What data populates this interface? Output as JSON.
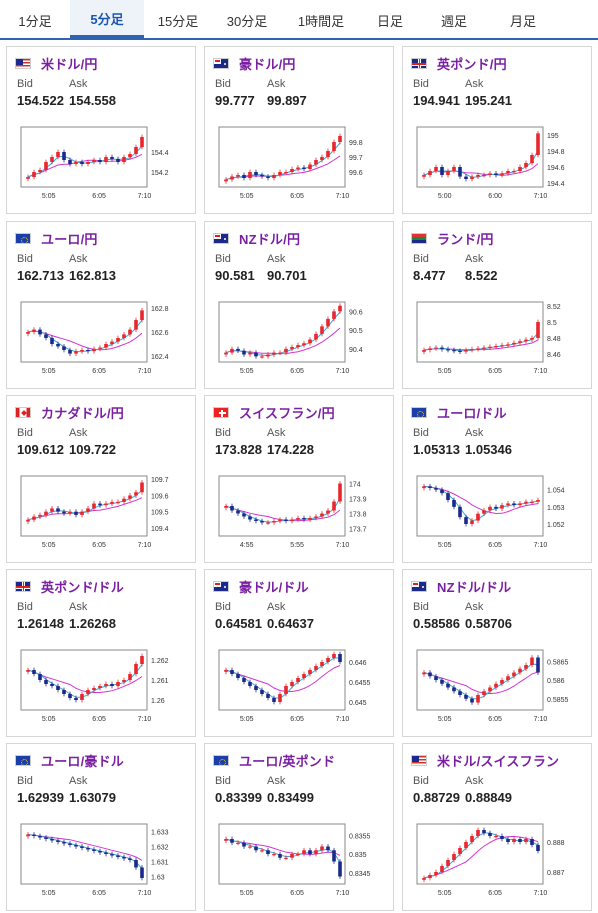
{
  "tabs": [
    {
      "label": "1分足",
      "active": false
    },
    {
      "label": "5分足",
      "active": true
    },
    {
      "label": "15分足",
      "active": false
    },
    {
      "label": "30分足",
      "active": false
    },
    {
      "label": "1時間足",
      "active": false
    },
    {
      "label": "日足",
      "active": false
    },
    {
      "label": "週足",
      "active": false
    },
    {
      "label": "月足",
      "active": false
    }
  ],
  "labels": {
    "bid": "Bid",
    "ask": "Ask"
  },
  "colors": {
    "up": "#e8262b",
    "down": "#1b2a8a",
    "ma_short": "#3fa2d8",
    "ma_long": "#d236d2",
    "pair_title": "#7b1fa2",
    "tab_accent": "#2f64b4"
  },
  "cards": [
    {
      "pair": "米ドル/円",
      "flag": "us-flag",
      "bid": "154.522",
      "ask": "154.558",
      "chart_data": {
        "type": "candlestick",
        "x_ticks": [
          "5:05",
          "6:05",
          "7:10"
        ],
        "y_ticks": [
          "154.4",
          "154.2"
        ],
        "ylim": [
          154.05,
          154.65
        ],
        "close": [
          154.15,
          154.2,
          154.22,
          154.3,
          154.35,
          154.4,
          154.32,
          154.28,
          154.3,
          154.28,
          154.3,
          154.32,
          154.3,
          154.35,
          154.33,
          154.3,
          154.35,
          154.38,
          154.45,
          154.55
        ]
      }
    },
    {
      "pair": "豪ドル/円",
      "flag": "au-flag",
      "bid": "99.777",
      "ask": "99.897",
      "chart_data": {
        "type": "candlestick",
        "x_ticks": [
          "5:05",
          "6:05",
          "7:10"
        ],
        "y_ticks": [
          "99.8",
          "99.7",
          "99.6"
        ],
        "ylim": [
          99.5,
          99.9
        ],
        "close": [
          99.55,
          99.57,
          99.58,
          99.56,
          99.6,
          99.58,
          99.57,
          99.56,
          99.58,
          99.6,
          99.6,
          99.62,
          99.63,
          99.62,
          99.65,
          99.68,
          99.7,
          99.74,
          99.8,
          99.84
        ]
      }
    },
    {
      "pair": "英ポンド/円",
      "flag": "gb-flag",
      "bid": "194.941",
      "ask": "195.241",
      "chart_data": {
        "type": "candlestick",
        "x_ticks": [
          "5:00",
          "6:00",
          "7:10"
        ],
        "y_ticks": [
          "195",
          "194.8",
          "194.6",
          "194.4"
        ],
        "ylim": [
          194.35,
          195.1
        ],
        "close": [
          194.5,
          194.55,
          194.6,
          194.5,
          194.55,
          194.6,
          194.48,
          194.45,
          194.48,
          194.5,
          194.5,
          194.52,
          194.5,
          194.52,
          194.55,
          194.55,
          194.6,
          194.65,
          194.75,
          195.02
        ]
      }
    },
    {
      "pair": "ユーロ/円",
      "flag": "eu-flag",
      "bid": "162.713",
      "ask": "162.813",
      "chart_data": {
        "type": "candlestick",
        "x_ticks": [
          "5:05",
          "6:05",
          "7:10"
        ],
        "y_ticks": [
          "162.8",
          "162.6",
          "162.4"
        ],
        "ylim": [
          162.35,
          162.85
        ],
        "close": [
          162.6,
          162.62,
          162.58,
          162.55,
          162.5,
          162.48,
          162.45,
          162.42,
          162.44,
          162.45,
          162.44,
          162.46,
          162.47,
          162.5,
          162.52,
          162.55,
          162.58,
          162.62,
          162.7,
          162.78
        ]
      }
    },
    {
      "pair": "NZドル/円",
      "flag": "nz-flag",
      "bid": "90.581",
      "ask": "90.701",
      "chart_data": {
        "type": "candlestick",
        "x_ticks": [
          "5:05",
          "6:05",
          "7:10"
        ],
        "y_ticks": [
          "90.6",
          "90.5",
          "90.4"
        ],
        "ylim": [
          90.33,
          90.65
        ],
        "close": [
          90.38,
          90.4,
          90.39,
          90.37,
          90.38,
          90.36,
          90.36,
          90.37,
          90.38,
          90.38,
          90.4,
          90.41,
          90.42,
          90.43,
          90.45,
          90.48,
          90.52,
          90.56,
          90.6,
          90.63
        ]
      }
    },
    {
      "pair": "ランド/円",
      "flag": "za-flag",
      "bid": "8.477",
      "ask": "8.522",
      "chart_data": {
        "type": "candlestick",
        "x_ticks": [
          "5:05",
          "6:05",
          "7:10"
        ],
        "y_ticks": [
          "8.52",
          "8.5",
          "8.48",
          "8.46"
        ],
        "ylim": [
          8.45,
          8.525
        ],
        "close": [
          8.465,
          8.467,
          8.468,
          8.466,
          8.465,
          8.464,
          8.463,
          8.465,
          8.466,
          8.467,
          8.468,
          8.469,
          8.47,
          8.471,
          8.472,
          8.474,
          8.476,
          8.478,
          8.48,
          8.5
        ]
      }
    },
    {
      "pair": "カナダドル/円",
      "flag": "ca-flag",
      "bid": "109.612",
      "ask": "109.722",
      "chart_data": {
        "type": "candlestick",
        "x_ticks": [
          "5:05",
          "6:05",
          "7:10"
        ],
        "y_ticks": [
          "109.7",
          "109.6",
          "109.5",
          "109.4"
        ],
        "ylim": [
          109.35,
          109.72
        ],
        "close": [
          109.45,
          109.47,
          109.48,
          109.5,
          109.52,
          109.5,
          109.49,
          109.5,
          109.48,
          109.5,
          109.52,
          109.55,
          109.54,
          109.55,
          109.56,
          109.56,
          109.58,
          109.6,
          109.62,
          109.68
        ]
      }
    },
    {
      "pair": "スイスフラン/円",
      "flag": "ch-flag",
      "bid": "173.828",
      "ask": "174.228",
      "chart_data": {
        "type": "candlestick",
        "x_ticks": [
          "4:55",
          "5:55",
          "7:10"
        ],
        "y_ticks": [
          "174",
          "173.9",
          "173.8",
          "173.7"
        ],
        "ylim": [
          173.65,
          174.05
        ],
        "close": [
          173.85,
          173.82,
          173.8,
          173.78,
          173.76,
          173.75,
          173.74,
          173.74,
          173.75,
          173.76,
          173.75,
          173.76,
          173.77,
          173.76,
          173.77,
          173.78,
          173.8,
          173.82,
          173.88,
          174.0
        ]
      }
    },
    {
      "pair": "ユーロ/ドル",
      "flag": "eu-flag",
      "bid": "1.05313",
      "ask": "1.05346",
      "chart_data": {
        "type": "candlestick",
        "x_ticks": [
          "5:05",
          "6:05",
          "7:10"
        ],
        "y_ticks": [
          "1.054",
          "1.053",
          "1.052"
        ],
        "ylim": [
          1.0513,
          1.0548
        ],
        "close": [
          1.0542,
          1.0541,
          1.054,
          1.0538,
          1.0534,
          1.053,
          1.0524,
          1.052,
          1.0522,
          1.0526,
          1.0528,
          1.053,
          1.0529,
          1.0531,
          1.0532,
          1.0531,
          1.0532,
          1.0533,
          1.0533,
          1.0534
        ]
      }
    },
    {
      "pair": "英ポンド/ドル",
      "flag": "gb-flag",
      "bid": "1.26148",
      "ask": "1.26268",
      "chart_data": {
        "type": "candlestick",
        "x_ticks": [
          "5:05",
          "6:05",
          "7:10"
        ],
        "y_ticks": [
          "1.262",
          "1.261",
          "1.26"
        ],
        "ylim": [
          1.2595,
          1.2625
        ],
        "close": [
          1.2615,
          1.2613,
          1.261,
          1.2608,
          1.2607,
          1.2605,
          1.2603,
          1.2601,
          1.26,
          1.2603,
          1.2605,
          1.2606,
          1.2607,
          1.2608,
          1.2607,
          1.2609,
          1.261,
          1.2613,
          1.2618,
          1.2622
        ]
      }
    },
    {
      "pair": "豪ドル/ドル",
      "flag": "au-flag",
      "bid": "0.64581",
      "ask": "0.64637",
      "chart_data": {
        "type": "candlestick",
        "x_ticks": [
          "5:05",
          "6:05",
          "7:10"
        ],
        "y_ticks": [
          "0.646",
          "0.6455",
          "0.645"
        ],
        "ylim": [
          0.6448,
          0.6463
        ],
        "close": [
          0.6458,
          0.6457,
          0.6456,
          0.6455,
          0.6454,
          0.6453,
          0.6452,
          0.6451,
          0.645,
          0.6452,
          0.6454,
          0.6455,
          0.6456,
          0.6457,
          0.6458,
          0.6459,
          0.646,
          0.6461,
          0.6462,
          0.646
        ]
      }
    },
    {
      "pair": "NZドル/ドル",
      "flag": "nz-flag",
      "bid": "0.58586",
      "ask": "0.58706",
      "chart_data": {
        "type": "candlestick",
        "x_ticks": [
          "5:05",
          "6:05",
          "7:10"
        ],
        "y_ticks": [
          "0.5865",
          "0.586",
          "0.5855"
        ],
        "ylim": [
          0.5852,
          0.5868
        ],
        "close": [
          0.5862,
          0.5861,
          0.586,
          0.5859,
          0.5858,
          0.5857,
          0.5856,
          0.5855,
          0.5854,
          0.5856,
          0.5857,
          0.5858,
          0.5859,
          0.586,
          0.5861,
          0.5862,
          0.5863,
          0.5864,
          0.5866,
          0.5862
        ]
      }
    },
    {
      "pair": "ユーロ/豪ドル",
      "flag": "eu-flag",
      "bid": "1.62939",
      "ask": "1.63079",
      "chart_data": {
        "type": "candlestick",
        "x_ticks": [
          "5:05",
          "6:05",
          "7:10"
        ],
        "y_ticks": [
          "1.633",
          "1.632",
          "1.631",
          "1.63"
        ],
        "ylim": [
          1.6295,
          1.6335
        ],
        "close": [
          1.6328,
          1.6327,
          1.6326,
          1.6325,
          1.6324,
          1.6323,
          1.6322,
          1.6321,
          1.632,
          1.6319,
          1.6318,
          1.6317,
          1.6316,
          1.6315,
          1.6314,
          1.6313,
          1.6312,
          1.6311,
          1.6306,
          1.6299
        ]
      }
    },
    {
      "pair": "ユーロ/英ポンド",
      "flag": "eu-flag",
      "bid": "0.83399",
      "ask": "0.83499",
      "chart_data": {
        "type": "candlestick",
        "x_ticks": [
          "5:05",
          "6:05",
          "7:10"
        ],
        "y_ticks": [
          "0.8355",
          "0.835",
          "0.8345"
        ],
        "ylim": [
          0.8342,
          0.8358
        ],
        "close": [
          0.8354,
          0.8353,
          0.8353,
          0.8352,
          0.8352,
          0.8351,
          0.8351,
          0.835,
          0.835,
          0.8349,
          0.8349,
          0.835,
          0.835,
          0.8351,
          0.835,
          0.8351,
          0.8352,
          0.8351,
          0.8348,
          0.8344
        ]
      }
    },
    {
      "pair": "米ドル/スイスフラン",
      "flag": "us-flag",
      "bid": "0.88729",
      "ask": "0.88849",
      "chart_data": {
        "type": "candlestick",
        "x_ticks": [
          "5:05",
          "6:05",
          "7:10"
        ],
        "y_ticks": [
          "0.888",
          "0.887"
        ],
        "ylim": [
          0.8866,
          0.8886
        ],
        "close": [
          0.8868,
          0.8869,
          0.887,
          0.8872,
          0.8874,
          0.8876,
          0.8878,
          0.888,
          0.8882,
          0.8884,
          0.8883,
          0.8882,
          0.8882,
          0.8881,
          0.888,
          0.8881,
          0.888,
          0.8881,
          0.8879,
          0.8877
        ]
      }
    }
  ]
}
